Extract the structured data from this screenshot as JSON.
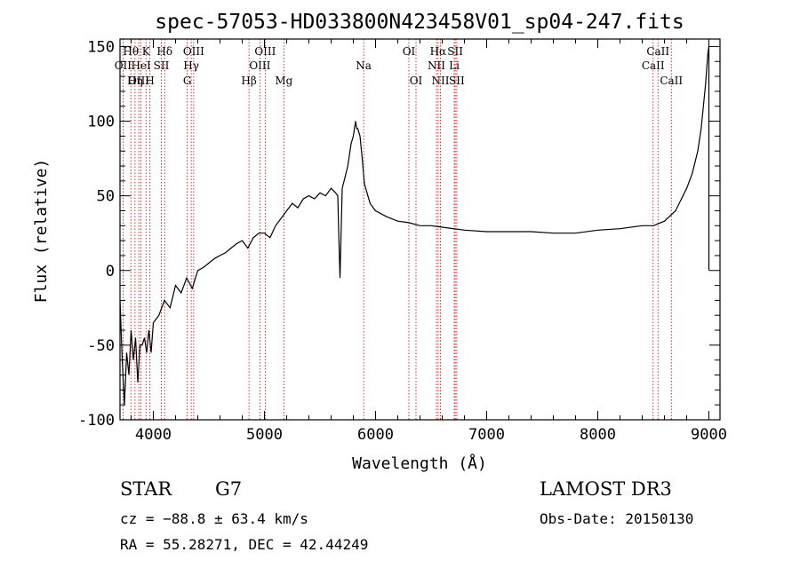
{
  "chart_data": {
    "type": "line",
    "title": "spec-57053-HD033800N423458V01_sp04-247.fits",
    "xlabel": "Wavelength (Å)",
    "ylabel": "Flux (relative)",
    "xlim": [
      3700,
      9100
    ],
    "ylim": [
      -100,
      155
    ],
    "xticks": [
      4000,
      5000,
      6000,
      7000,
      8000,
      9000
    ],
    "yticks": [
      -100,
      -50,
      0,
      50,
      100,
      150
    ],
    "series": [
      {
        "name": "spectrum",
        "x": [
          3700,
          3720,
          3740,
          3760,
          3780,
          3800,
          3820,
          3840,
          3860,
          3880,
          3900,
          3920,
          3940,
          3960,
          3980,
          4000,
          4050,
          4100,
          4150,
          4200,
          4250,
          4300,
          4350,
          4400,
          4450,
          4500,
          4550,
          4600,
          4650,
          4700,
          4750,
          4800,
          4850,
          4900,
          4950,
          5000,
          5050,
          5100,
          5150,
          5200,
          5250,
          5300,
          5350,
          5400,
          5450,
          5500,
          5550,
          5600,
          5640,
          5660,
          5670,
          5680,
          5700,
          5750,
          5780,
          5800,
          5820,
          5830,
          5840,
          5860,
          5880,
          5900,
          5950,
          6000,
          6100,
          6200,
          6300,
          6400,
          6500,
          6600,
          6800,
          7000,
          7200,
          7400,
          7600,
          7800,
          8000,
          8200,
          8400,
          8500,
          8600,
          8700,
          8800,
          8850,
          8900,
          8930,
          8950,
          8970,
          8990,
          9000
        ],
        "y": [
          -20,
          -60,
          -90,
          -55,
          -70,
          -40,
          -60,
          -45,
          -75,
          -50,
          -50,
          -45,
          -55,
          -40,
          -55,
          -35,
          -30,
          -20,
          -25,
          -10,
          -15,
          -5,
          -12,
          0,
          2,
          5,
          8,
          10,
          12,
          15,
          18,
          20,
          15,
          22,
          25,
          25,
          22,
          30,
          35,
          40,
          45,
          42,
          48,
          50,
          48,
          52,
          50,
          55,
          52,
          50,
          20,
          -5,
          55,
          70,
          85,
          90,
          100,
          95,
          95,
          90,
          75,
          58,
          45,
          40,
          36,
          33,
          32,
          30,
          30,
          29,
          27,
          26,
          26,
          26,
          25,
          25,
          27,
          28,
          30,
          30,
          33,
          40,
          55,
          65,
          80,
          95,
          110,
          125,
          145,
          150
        ]
      }
    ],
    "emission_lines": [
      {
        "label": "Hθ",
        "wavelength": 3798,
        "row": 1
      },
      {
        "label": "OII",
        "wavelength": 3727,
        "row": 2
      },
      {
        "label": "OIII",
        "wavelength": 3869,
        "row": 3
      },
      {
        "label": "K",
        "wavelength": 3934,
        "row": 1
      },
      {
        "label": "HeI",
        "wavelength": 3889,
        "row": 2
      },
      {
        "label": "Hη",
        "wavelength": 3835,
        "row": 3
      },
      {
        "label": "Hδ",
        "wavelength": 4102,
        "row": 1
      },
      {
        "label": "SII",
        "wavelength": 4072,
        "row": 2
      },
      {
        "label": "H",
        "wavelength": 3969,
        "row": 3
      },
      {
        "label": "OIII",
        "wavelength": 4363,
        "row": 1
      },
      {
        "label": "Hγ",
        "wavelength": 4341,
        "row": 2
      },
      {
        "label": "G",
        "wavelength": 4305,
        "row": 3
      },
      {
        "label": "OIII",
        "wavelength": 5007,
        "row": 1
      },
      {
        "label": "OIII",
        "wavelength": 4959,
        "row": 2
      },
      {
        "label": "Hβ",
        "wavelength": 4861,
        "row": 3
      },
      {
        "label": "Mg",
        "wavelength": 5175,
        "row": 3
      },
      {
        "label": "Na",
        "wavelength": 5893,
        "row": 2
      },
      {
        "label": "OI",
        "wavelength": 6300,
        "row": 1
      },
      {
        "label": "OI",
        "wavelength": 6364,
        "row": 3
      },
      {
        "label": "Hα",
        "wavelength": 6563,
        "row": 1
      },
      {
        "label": "NII",
        "wavelength": 6548,
        "row": 2
      },
      {
        "label": "NII",
        "wavelength": 6584,
        "row": 3
      },
      {
        "label": "SII",
        "wavelength": 6717,
        "row": 1
      },
      {
        "label": "Li",
        "wavelength": 6708,
        "row": 2
      },
      {
        "label": "SII",
        "wavelength": 6731,
        "row": 3
      },
      {
        "label": "CaII",
        "wavelength": 8542,
        "row": 1
      },
      {
        "label": "CaII",
        "wavelength": 8498,
        "row": 2
      },
      {
        "label": "CaII",
        "wavelength": 8662,
        "row": 3
      }
    ]
  },
  "info": {
    "object_class": "STAR",
    "subclass": "G7",
    "survey": "LAMOST DR3",
    "velocity": "cz = −88.8 ± 63.4 km/s",
    "obs_date": "Obs-Date: 20150130",
    "coords": "RA =  55.28271, DEC =  42.44249"
  },
  "colors": {
    "line_marker": "#cc0000",
    "spectrum": "#000000",
    "axes": "#000000"
  }
}
